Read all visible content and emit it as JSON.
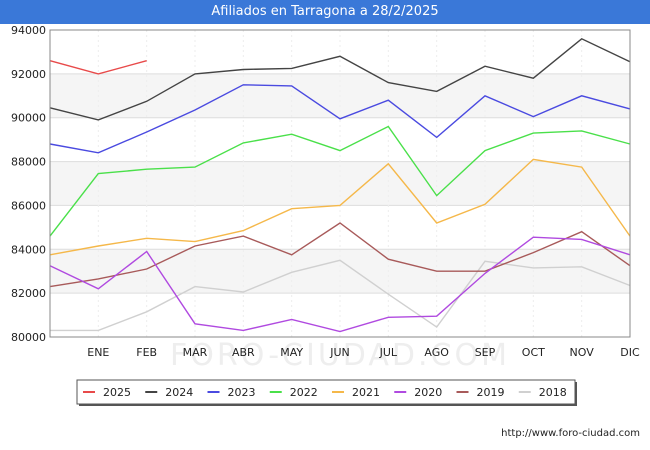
{
  "header": {
    "title": "Afiliados en Tarragona a 28/2/2025"
  },
  "footer": {
    "url": "http://www.foro-ciudad.com"
  },
  "watermark": "FORO-CIUDAD.COM",
  "chart_data": {
    "type": "line",
    "title": "Afiliados en Tarragona a 28/2/2025",
    "xlabel": "",
    "ylabel": "",
    "x": [
      "",
      "ENE",
      "FEB",
      "MAR",
      "ABR",
      "MAY",
      "JUN",
      "JUL",
      "AGO",
      "SEP",
      "OCT",
      "NOV",
      "DIC"
    ],
    "yticks": [
      "80000",
      "82000",
      "84000",
      "86000",
      "88000",
      "90000",
      "92000",
      "94000"
    ],
    "ylim": [
      80000,
      94000
    ],
    "grid": "horizontal",
    "legend_position": "bottom",
    "series": [
      {
        "name": "2025",
        "color": "#e84a4a",
        "values": [
          92600,
          92000,
          92600,
          null,
          null,
          null,
          null,
          null,
          null,
          null,
          null,
          null,
          null
        ]
      },
      {
        "name": "2024",
        "color": "#444444",
        "values": [
          90450,
          89900,
          90750,
          92000,
          92200,
          92250,
          92800,
          91600,
          91200,
          92350,
          91800,
          93600,
          92550
        ]
      },
      {
        "name": "2023",
        "color": "#4a4ae0",
        "values": [
          88800,
          88400,
          89350,
          90350,
          91500,
          91450,
          89950,
          90800,
          89100,
          91000,
          90050,
          91000,
          90400
        ]
      },
      {
        "name": "2022",
        "color": "#4ae04a",
        "values": [
          84600,
          87450,
          87650,
          87750,
          88850,
          89250,
          88500,
          89600,
          86450,
          88500,
          89300,
          89400,
          88800
        ]
      },
      {
        "name": "2021",
        "color": "#f5b84a",
        "values": [
          83750,
          84150,
          84500,
          84350,
          84850,
          85850,
          86000,
          87900,
          85200,
          86050,
          88100,
          87750,
          84600
        ]
      },
      {
        "name": "2020",
        "color": "#b04ae0",
        "values": [
          83250,
          82200,
          83900,
          80600,
          80300,
          80800,
          80250,
          80900,
          80950,
          82900,
          84550,
          84450,
          83750
        ]
      },
      {
        "name": "2019",
        "color": "#a85a5a",
        "values": [
          82300,
          82650,
          83100,
          84150,
          84600,
          83750,
          85200,
          83550,
          83000,
          83000,
          83850,
          84800,
          83250
        ]
      },
      {
        "name": "2018",
        "color": "#d0d0d0",
        "values": [
          80300,
          80300,
          81150,
          82300,
          82050,
          82950,
          83500,
          81950,
          80450,
          83450,
          83150,
          83200,
          82350
        ]
      }
    ]
  }
}
